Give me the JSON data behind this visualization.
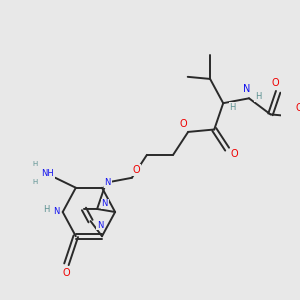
{
  "bg_color": "#e8e8e8",
  "bond_color": "#2a2a2a",
  "bond_width": 1.4,
  "atom_colors": {
    "N": "#1010ee",
    "O": "#ee0000",
    "C": "#2a2a2a",
    "H": "#5a9090"
  },
  "font_size": 7.0,
  "font_size_small": 6.0
}
